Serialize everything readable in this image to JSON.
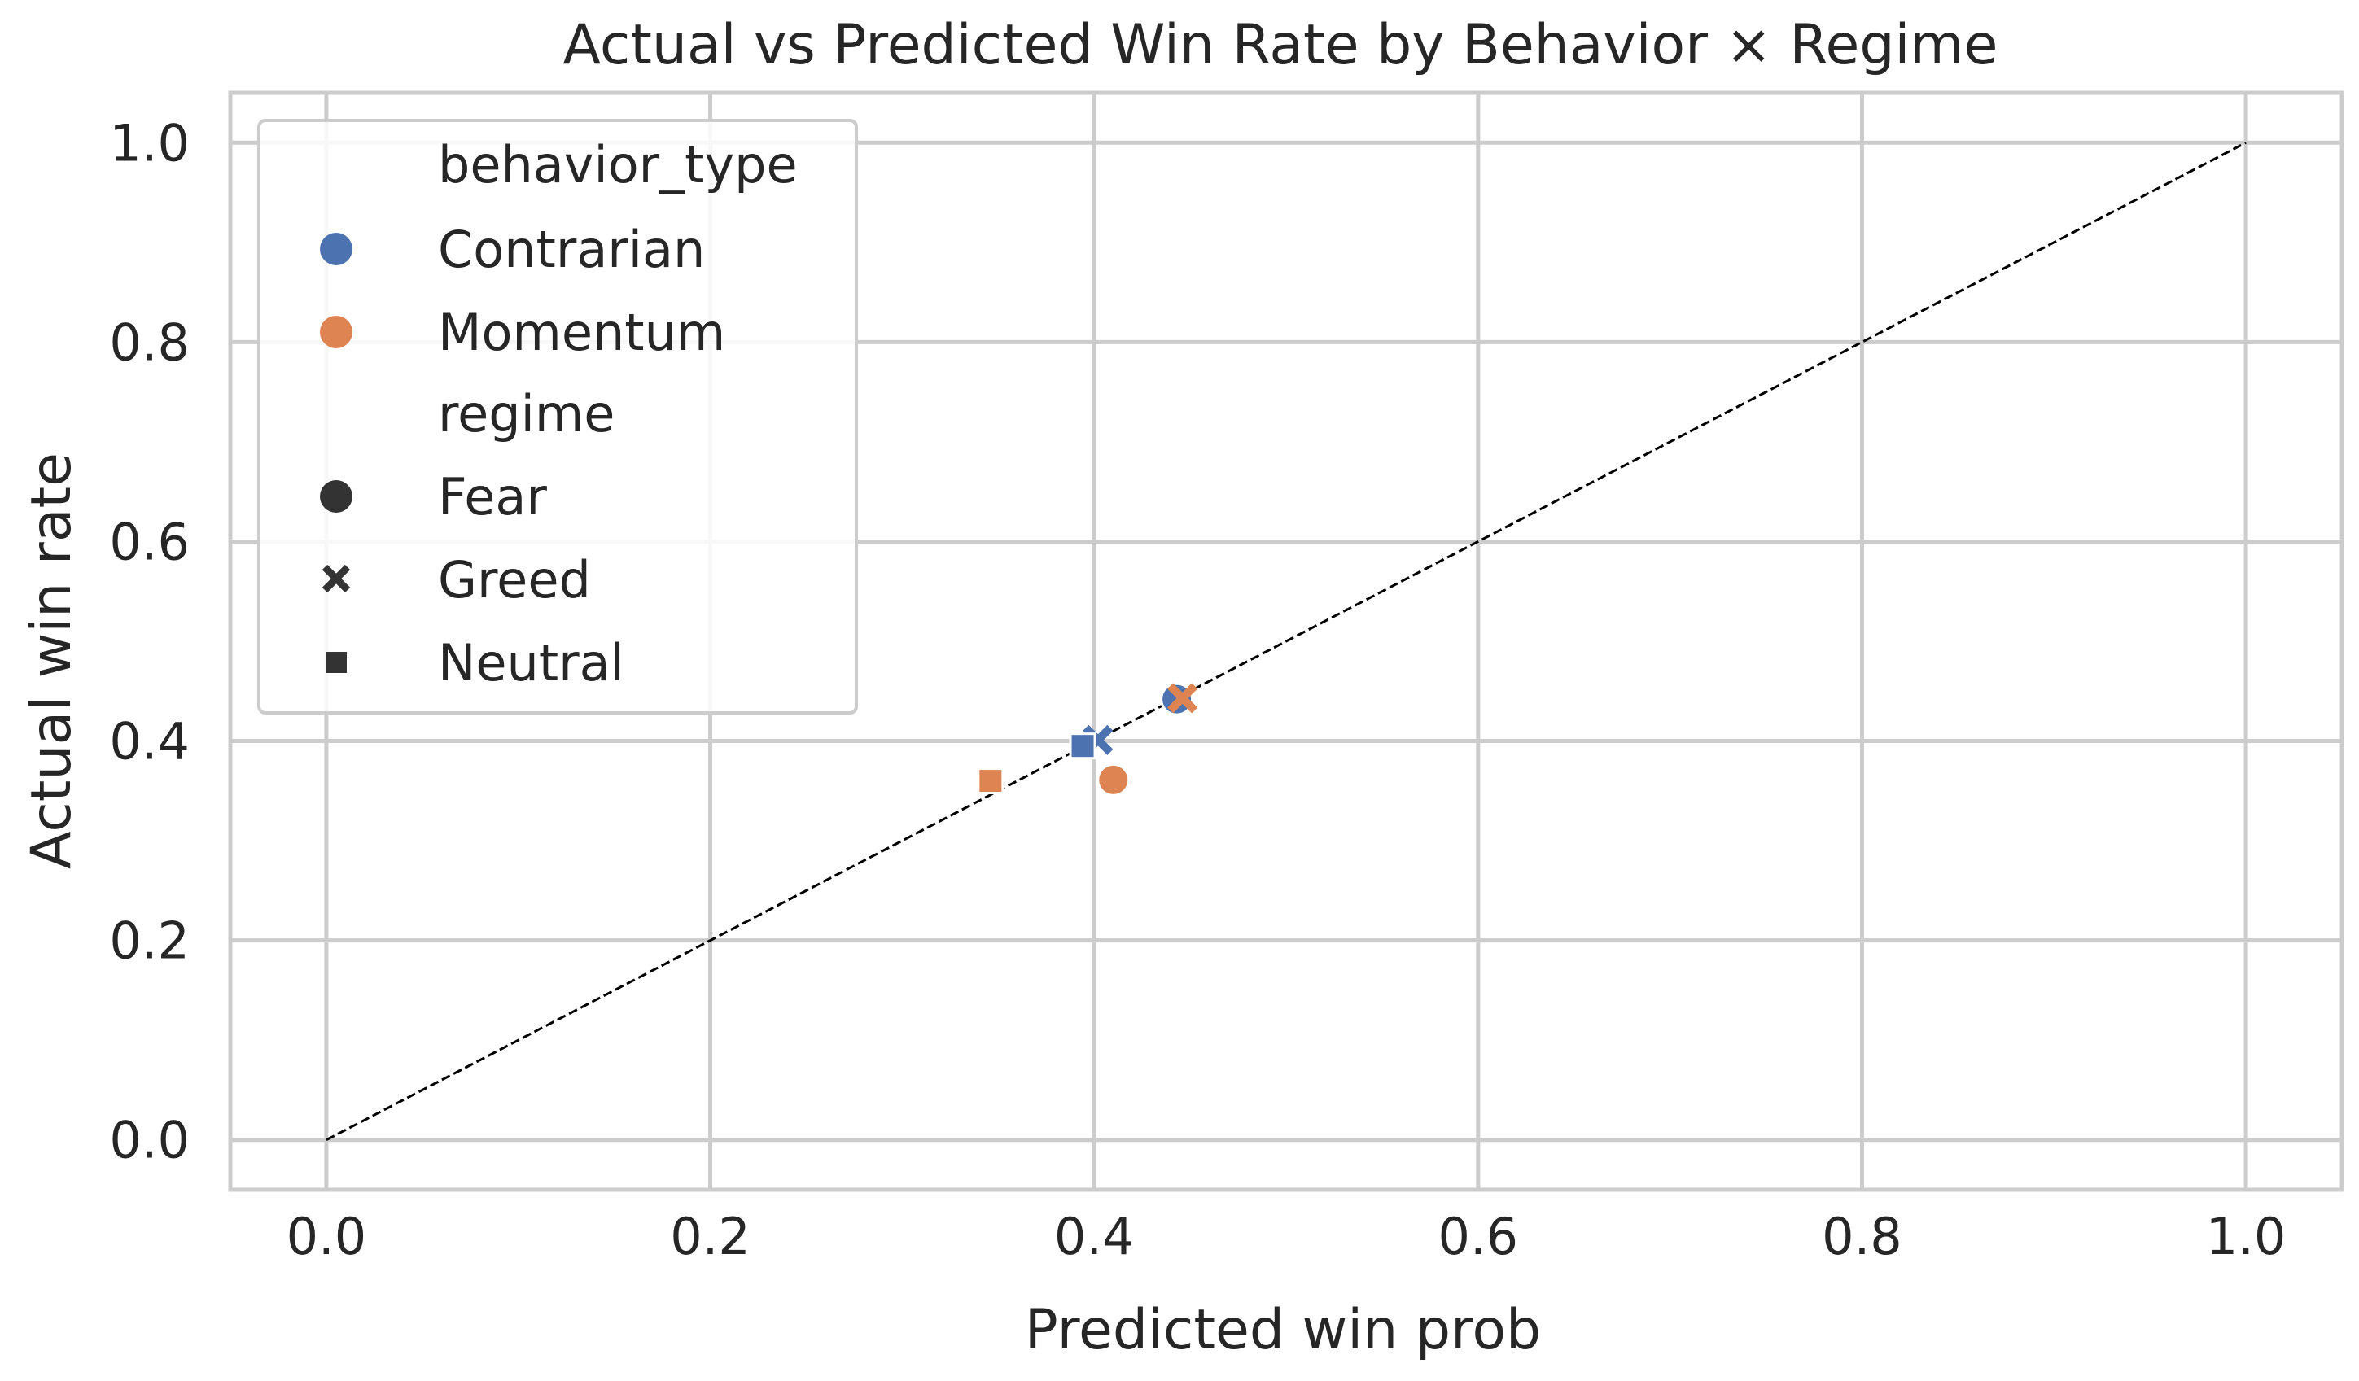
{
  "chart_data": {
    "type": "scatter",
    "title": "Actual vs Predicted Win Rate by Behavior × Regime",
    "xlabel": "Predicted win prob",
    "ylabel": "Actual win rate",
    "xlim": [
      -0.05,
      1.05
    ],
    "ylim": [
      -0.05,
      1.05
    ],
    "xticks": [
      0.0,
      0.2,
      0.4,
      0.6,
      0.8,
      1.0
    ],
    "xtick_labels": [
      "0.0",
      "0.2",
      "0.4",
      "0.6",
      "0.8",
      "1.0"
    ],
    "yticks": [
      0.0,
      0.2,
      0.4,
      0.6,
      0.8,
      1.0
    ],
    "ytick_labels": [
      "0.0",
      "0.2",
      "0.4",
      "0.6",
      "0.8",
      "1.0"
    ],
    "grid": true,
    "reference_line": {
      "x": [
        0,
        1
      ],
      "y": [
        0,
        1
      ],
      "style": "dashed",
      "color": "#000000"
    },
    "legend": {
      "position": "upper-left",
      "hue_title": "behavior_type",
      "hue_entries": [
        {
          "label": "Contrarian",
          "color": "#4c72b0"
        },
        {
          "label": "Momentum",
          "color": "#dd8452"
        }
      ],
      "style_title": "regime",
      "style_entries": [
        {
          "label": "Fear",
          "marker": "circle"
        },
        {
          "label": "Greed",
          "marker": "x"
        },
        {
          "label": "Neutral",
          "marker": "square"
        }
      ]
    },
    "points": [
      {
        "behavior_type": "Contrarian",
        "regime": "Fear",
        "x": 0.443,
        "y": 0.442
      },
      {
        "behavior_type": "Contrarian",
        "regime": "Greed",
        "x": 0.402,
        "y": 0.401
      },
      {
        "behavior_type": "Contrarian",
        "regime": "Neutral",
        "x": 0.394,
        "y": 0.395
      },
      {
        "behavior_type": "Momentum",
        "regime": "Fear",
        "x": 0.41,
        "y": 0.361
      },
      {
        "behavior_type": "Momentum",
        "regime": "Greed",
        "x": 0.446,
        "y": 0.443
      },
      {
        "behavior_type": "Momentum",
        "regime": "Neutral",
        "x": 0.346,
        "y": 0.36
      }
    ]
  }
}
